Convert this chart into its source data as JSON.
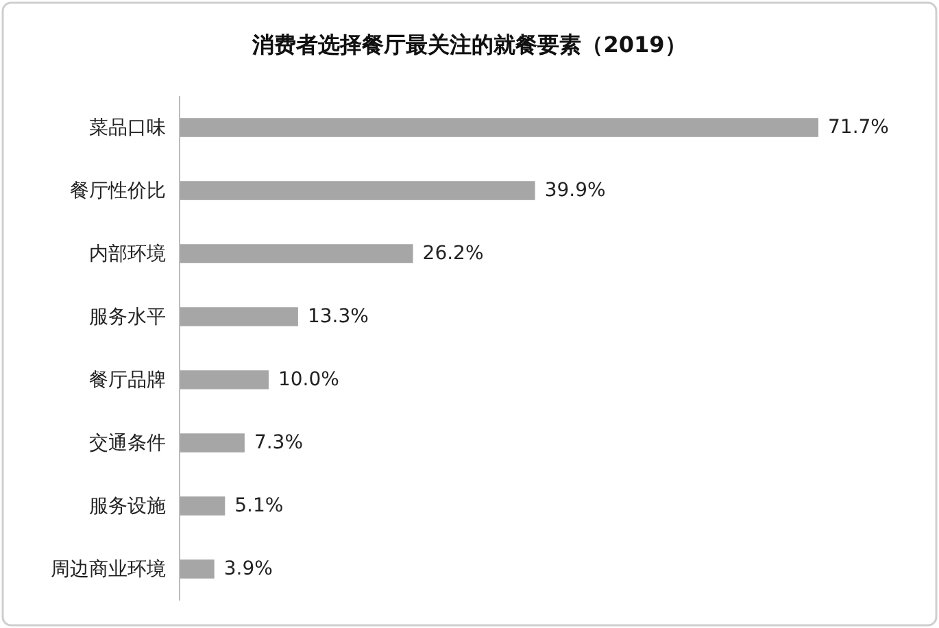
{
  "chart_data": {
    "type": "bar",
    "orientation": "horizontal",
    "title": "消费者选择餐厅最关注的就餐要素（2019）",
    "categories": [
      "菜品口味",
      "餐厅性价比",
      "内部环境",
      "服务水平",
      "餐厅品牌",
      "交通条件",
      "服务设施",
      "周边商业环境"
    ],
    "values": [
      71.7,
      39.9,
      26.2,
      13.3,
      10.0,
      7.3,
      5.1,
      3.9
    ],
    "value_labels": [
      "71.7%",
      "39.9%",
      "26.2%",
      "13.3%",
      "10.0%",
      "7.3%",
      "5.1%",
      "3.9%"
    ],
    "color": "#a6a6a6"
  }
}
